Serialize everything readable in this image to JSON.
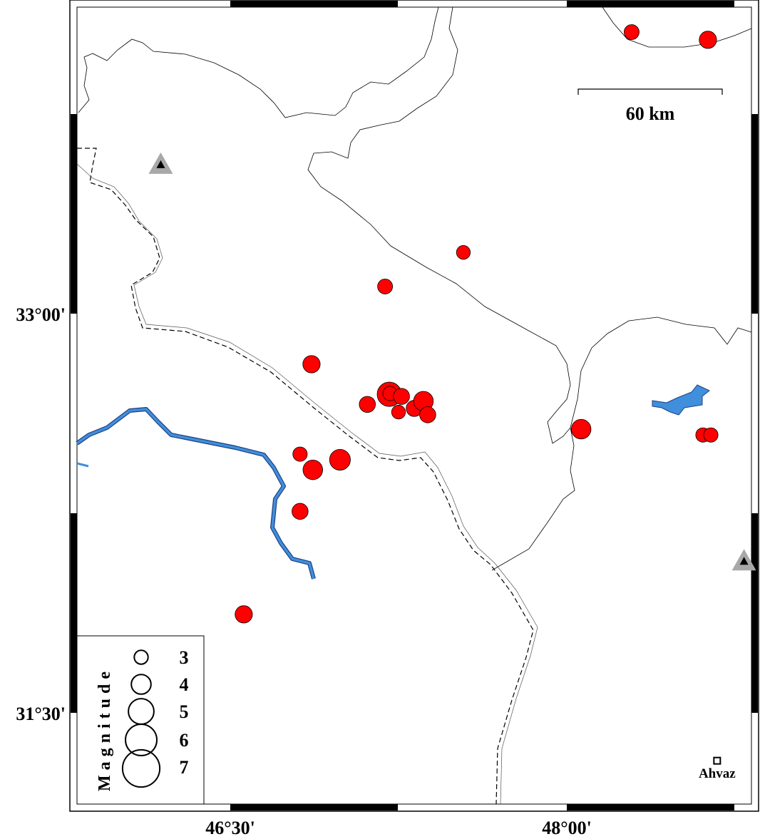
{
  "map": {
    "axis": {
      "x_ticks": [
        {
          "lon": 46.5,
          "label": "46°30'"
        },
        {
          "lon": 48.0,
          "label": "48°00'"
        }
      ],
      "y_ticks": [
        {
          "lat": 33.0,
          "label": "33°00'"
        },
        {
          "lat": 31.5,
          "label": "31°30'"
        }
      ]
    },
    "scale_bar": {
      "label": "60 km"
    },
    "city": {
      "name": "Ahvaz",
      "lon": 48.67,
      "lat": 31.32
    },
    "stations": [
      {
        "lon": 46.19,
        "lat": 33.56
      },
      {
        "lon": 48.79,
        "lat": 32.07
      }
    ],
    "colors": {
      "event": "#ff0000",
      "river": "#3f8fdc",
      "station": "#a8a8a8"
    },
    "events": [
      {
        "lon": 48.289,
        "lat": 34.058,
        "mag": 3.2
      },
      {
        "lon": 48.629,
        "lat": 34.029,
        "mag": 3.6
      },
      {
        "lon": 47.539,
        "lat": 33.23,
        "mag": 3.0
      },
      {
        "lon": 47.19,
        "lat": 33.102,
        "mag": 3.2
      },
      {
        "lon": 46.862,
        "lat": 32.81,
        "mag": 3.6
      },
      {
        "lon": 47.209,
        "lat": 32.697,
        "mag": 4.8
      },
      {
        "lon": 47.212,
        "lat": 32.7,
        "mag": 3.1
      },
      {
        "lon": 47.263,
        "lat": 32.689,
        "mag": 3.4
      },
      {
        "lon": 47.111,
        "lat": 32.659,
        "mag": 3.4
      },
      {
        "lon": 47.25,
        "lat": 32.63,
        "mag": 3.0
      },
      {
        "lon": 47.32,
        "lat": 32.644,
        "mag": 3.4
      },
      {
        "lon": 47.361,
        "lat": 32.671,
        "mag": 4.0
      },
      {
        "lon": 47.38,
        "lat": 32.62,
        "mag": 3.4
      },
      {
        "lon": 48.064,
        "lat": 32.566,
        "mag": 4.0
      },
      {
        "lon": 48.607,
        "lat": 32.544,
        "mag": 3.1
      },
      {
        "lon": 48.642,
        "lat": 32.544,
        "mag": 3.1
      },
      {
        "lon": 46.811,
        "lat": 32.472,
        "mag": 3.1
      },
      {
        "lon": 46.989,
        "lat": 32.451,
        "mag": 4.2
      },
      {
        "lon": 46.868,
        "lat": 32.413,
        "mag": 4.0
      },
      {
        "lon": 46.811,
        "lat": 32.257,
        "mag": 3.4
      },
      {
        "lon": 46.56,
        "lat": 31.87,
        "mag": 3.6
      }
    ]
  },
  "legend": {
    "title": "Magnitude",
    "items": [
      {
        "mag": 3,
        "label": "3"
      },
      {
        "mag": 4,
        "label": "4"
      },
      {
        "mag": 5,
        "label": "5"
      },
      {
        "mag": 6,
        "label": "6"
      },
      {
        "mag": 7,
        "label": "7"
      }
    ]
  }
}
